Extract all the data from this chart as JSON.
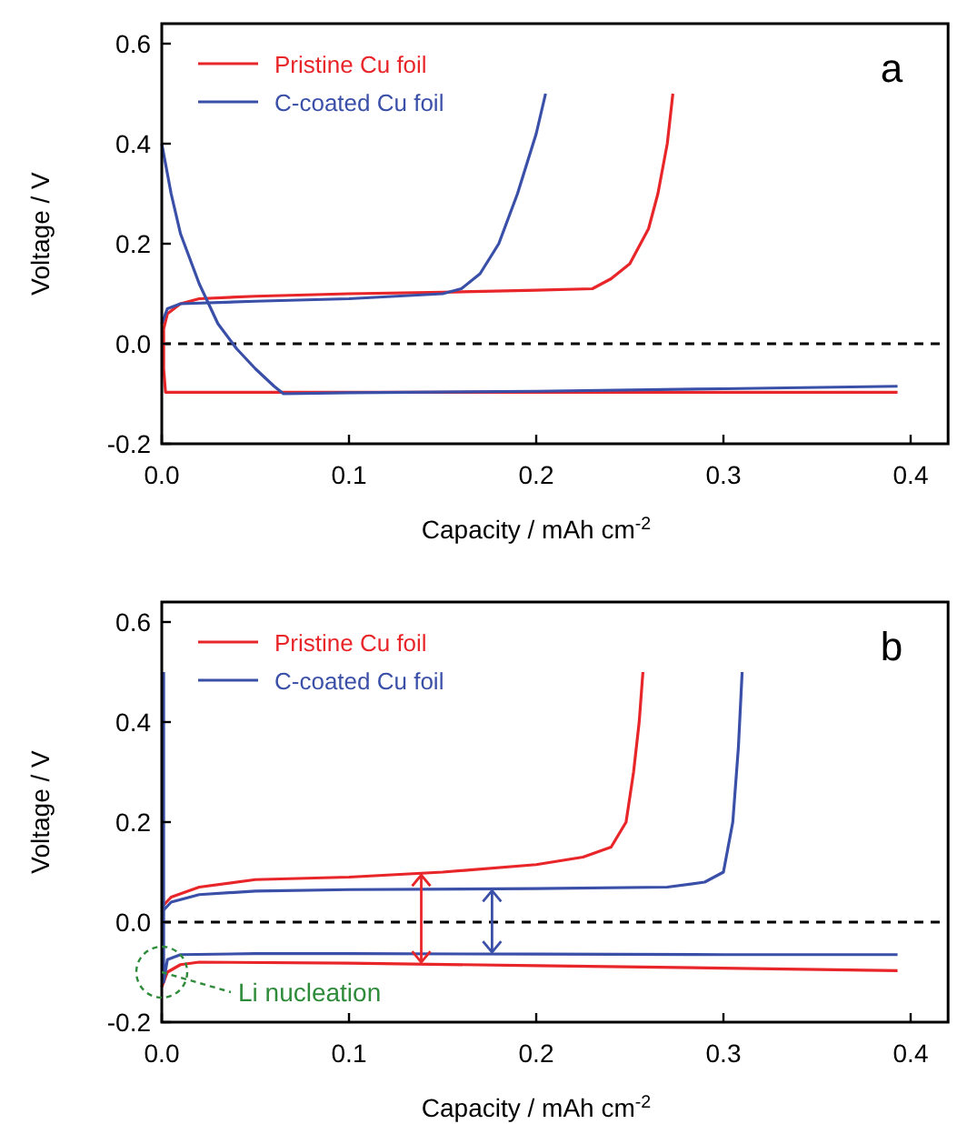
{
  "chart_data": [
    {
      "type": "line",
      "xlabel": "Capacity / mAh cm$^{-2}$",
      "ylabel": "Voltage / V",
      "xlim": [
        0,
        0.42
      ],
      "ylim": [
        -0.2,
        0.64
      ],
      "xticks": [
        {
          "value": 0,
          "label": "0.0"
        },
        {
          "value": 0.1,
          "label": "0.1"
        },
        {
          "value": 0.2,
          "label": "0.2"
        },
        {
          "value": 0.3,
          "label": "0.3"
        },
        {
          "value": 0.4,
          "label": "0.4"
        }
      ],
      "yticks": [
        {
          "value": -0.2,
          "label": "-0.2"
        },
        {
          "value": 0,
          "label": "0.0"
        },
        {
          "value": 0.2,
          "label": "0.2"
        },
        {
          "value": 0.4,
          "label": "0.4"
        },
        {
          "value": 0.6,
          "label": "0.6"
        }
      ],
      "legend": "top left",
      "grid": false,
      "line_style": "solid",
      "ref_lines": [
        {
          "axis": "y",
          "value": 0,
          "color": "#000000",
          "line_style": "dashed"
        }
      ],
      "annotations": [
        "a"
      ],
      "series": [
        {
          "name": "Pristine Cu foil",
          "color": "#e8262a",
          "x": [
            0.393,
            0.3,
            0.2,
            0.1,
            0.002,
            0.001,
            0.001,
            0.003,
            0.01,
            0.02,
            0.05,
            0.1,
            0.15,
            0.2,
            0.23,
            0.24,
            0.25,
            0.26,
            0.265,
            0.27,
            0.273
          ],
          "values": [
            -0.097,
            -0.097,
            -0.097,
            -0.097,
            -0.097,
            -0.05,
            0.03,
            0.06,
            0.08,
            0.09,
            0.095,
            0.1,
            0.103,
            0.107,
            0.11,
            0.13,
            0.16,
            0.23,
            0.3,
            0.4,
            0.5
          ]
        },
        {
          "name": "C-coated Cu foil",
          "color": "#3a4fa8",
          "x": [
            0,
            0.003,
            0.01,
            0.05,
            0.1,
            0.15,
            0.16,
            0.17,
            0.18,
            0.19,
            0.2,
            0.205
          ],
          "values": [
            0.04,
            0.07,
            0.08,
            0.085,
            0.09,
            0.1,
            0.11,
            0.14,
            0.2,
            0.3,
            0.42,
            0.5
          ]
        },
        {
          "color": "#3a4fa8",
          "x": [
            0,
            0.005,
            0.01,
            0.02,
            0.03,
            0.04,
            0.05,
            0.06,
            0.065,
            0.1,
            0.2,
            0.3,
            0.393
          ],
          "values": [
            0.4,
            0.3,
            0.22,
            0.12,
            0.04,
            -0.01,
            -0.05,
            -0.085,
            -0.1,
            -0.098,
            -0.095,
            -0.09,
            -0.085
          ]
        }
      ]
    },
    {
      "type": "line",
      "xlabel": "Capacity / mAh cm$^{-2}$",
      "ylabel": "Voltage / V",
      "xlim": [
        0,
        0.42
      ],
      "ylim": [
        -0.2,
        0.64
      ],
      "xticks": [
        {
          "value": 0,
          "label": "0.0"
        },
        {
          "value": 0.1,
          "label": "0.1"
        },
        {
          "value": 0.2,
          "label": "0.2"
        },
        {
          "value": 0.3,
          "label": "0.3"
        },
        {
          "value": 0.4,
          "label": "0.4"
        }
      ],
      "yticks": [
        {
          "value": -0.2,
          "label": "-0.2"
        },
        {
          "value": 0,
          "label": "0.0"
        },
        {
          "value": 0.2,
          "label": "0.2"
        },
        {
          "value": 0.4,
          "label": "0.4"
        },
        {
          "value": 0.6,
          "label": "0.6"
        }
      ],
      "legend": "top left",
      "grid": false,
      "line_style": "solid",
      "ref_lines": [
        {
          "axis": "y",
          "value": 0,
          "color": "#000000",
          "line_style": "dashed"
        }
      ],
      "annotations": [
        "b",
        {
          "text": "Li nucleation",
          "x": 0,
          "y": -0.1
        }
      ],
      "series": [
        {
          "name": "Pristine Cu foil",
          "color": "#e8262a",
          "x": [
            0,
            0.005,
            0.02,
            0.05,
            0.1,
            0.15,
            0.2,
            0.225,
            0.24,
            0.248,
            0.252,
            0.255,
            0.257
          ],
          "values": [
            0.03,
            0.05,
            0.07,
            0.085,
            0.09,
            0.1,
            0.115,
            0.13,
            0.15,
            0.2,
            0.3,
            0.4,
            0.5
          ]
        },
        {
          "color": "#e8262a",
          "x": [
            0,
            0.003,
            0.01,
            0.02,
            0.1,
            0.2,
            0.3,
            0.393
          ],
          "values": [
            -0.13,
            -0.1,
            -0.085,
            -0.08,
            -0.082,
            -0.087,
            -0.092,
            -0.097
          ]
        },
        {
          "name": "C-coated Cu foil",
          "color": "#3a4fa8",
          "x": [
            0,
            0.005,
            0.02,
            0.05,
            0.1,
            0.2,
            0.27,
            0.29,
            0.3,
            0.305,
            0.308,
            0.31
          ],
          "values": [
            0.02,
            0.04,
            0.055,
            0.062,
            0.065,
            0.067,
            0.07,
            0.08,
            0.1,
            0.2,
            0.35,
            0.5
          ]
        },
        {
          "color": "#3a4fa8",
          "x": [
            0.001,
            0.001,
            0.003,
            0.01,
            0.05,
            0.1,
            0.2,
            0.3,
            0.393
          ],
          "values": [
            0.5,
            -0.12,
            -0.075,
            -0.065,
            -0.063,
            -0.063,
            -0.064,
            -0.065,
            -0.065
          ]
        }
      ]
    }
  ]
}
